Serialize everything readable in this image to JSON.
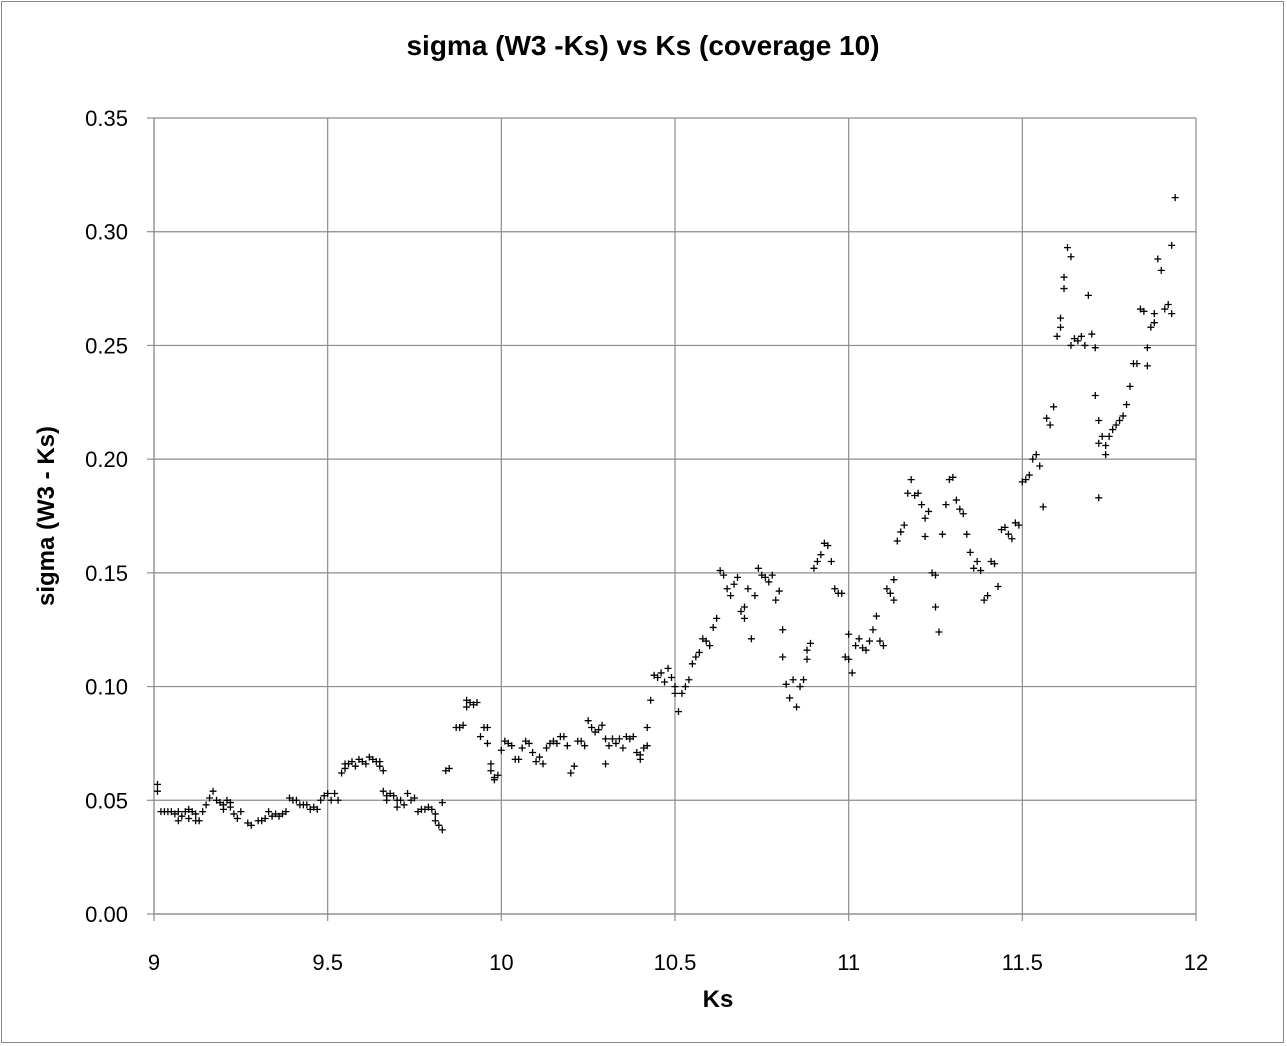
{
  "chart_data": {
    "type": "scatter",
    "title": "sigma (W3 -Ks) vs  Ks  (coverage 10)",
    "xlabel": "Ks",
    "ylabel": "sigma (W3 - Ks)",
    "xlim": [
      9,
      12
    ],
    "ylim": [
      0,
      0.35
    ],
    "x_ticks": [
      "9",
      "9.5",
      "10",
      "10.5",
      "11",
      "11.5",
      "12"
    ],
    "y_ticks": [
      "0.00",
      "0.05",
      "0.10",
      "0.15",
      "0.20",
      "0.25",
      "0.30",
      "0.35"
    ],
    "grid": true,
    "marker": "+",
    "marker_color": "#000000",
    "legend": "none",
    "points": [
      [
        9.01,
        0.057
      ],
      [
        9.01,
        0.054
      ],
      [
        9.02,
        0.045
      ],
      [
        9.03,
        0.045
      ],
      [
        9.04,
        0.045
      ],
      [
        9.05,
        0.045
      ],
      [
        9.06,
        0.044
      ],
      [
        9.07,
        0.045
      ],
      [
        9.07,
        0.041
      ],
      [
        9.08,
        0.043
      ],
      [
        9.09,
        0.045
      ],
      [
        9.1,
        0.046
      ],
      [
        9.1,
        0.042
      ],
      [
        9.11,
        0.045
      ],
      [
        9.12,
        0.044
      ],
      [
        9.12,
        0.041
      ],
      [
        9.13,
        0.041
      ],
      [
        9.14,
        0.045
      ],
      [
        9.15,
        0.048
      ],
      [
        9.16,
        0.051
      ],
      [
        9.17,
        0.054
      ],
      [
        9.18,
        0.05
      ],
      [
        9.19,
        0.049
      ],
      [
        9.2,
        0.048
      ],
      [
        9.2,
        0.046
      ],
      [
        9.21,
        0.05
      ],
      [
        9.22,
        0.049
      ],
      [
        9.22,
        0.047
      ],
      [
        9.23,
        0.044
      ],
      [
        9.24,
        0.042
      ],
      [
        9.25,
        0.045
      ],
      [
        9.27,
        0.04
      ],
      [
        9.28,
        0.039
      ],
      [
        9.3,
        0.041
      ],
      [
        9.31,
        0.041
      ],
      [
        9.32,
        0.042
      ],
      [
        9.33,
        0.045
      ],
      [
        9.34,
        0.043
      ],
      [
        9.35,
        0.044
      ],
      [
        9.36,
        0.043
      ],
      [
        9.37,
        0.044
      ],
      [
        9.38,
        0.045
      ],
      [
        9.39,
        0.051
      ],
      [
        9.4,
        0.05
      ],
      [
        9.41,
        0.05
      ],
      [
        9.42,
        0.048
      ],
      [
        9.43,
        0.048
      ],
      [
        9.44,
        0.048
      ],
      [
        9.45,
        0.046
      ],
      [
        9.46,
        0.047
      ],
      [
        9.47,
        0.046
      ],
      [
        9.48,
        0.05
      ],
      [
        9.49,
        0.052
      ],
      [
        9.5,
        0.053
      ],
      [
        9.51,
        0.05
      ],
      [
        9.52,
        0.053
      ],
      [
        9.53,
        0.05
      ],
      [
        9.54,
        0.062
      ],
      [
        9.55,
        0.064
      ],
      [
        9.55,
        0.066
      ],
      [
        9.56,
        0.066
      ],
      [
        9.57,
        0.067
      ],
      [
        9.58,
        0.065
      ],
      [
        9.59,
        0.068
      ],
      [
        9.6,
        0.067
      ],
      [
        9.61,
        0.066
      ],
      [
        9.62,
        0.069
      ],
      [
        9.63,
        0.068
      ],
      [
        9.64,
        0.067
      ],
      [
        9.65,
        0.067
      ],
      [
        9.65,
        0.065
      ],
      [
        9.66,
        0.063
      ],
      [
        9.66,
        0.054
      ],
      [
        9.67,
        0.052
      ],
      [
        9.67,
        0.05
      ],
      [
        9.68,
        0.053
      ],
      [
        9.69,
        0.052
      ],
      [
        9.7,
        0.05
      ],
      [
        9.7,
        0.047
      ],
      [
        9.71,
        0.05
      ],
      [
        9.72,
        0.048
      ],
      [
        9.73,
        0.053
      ],
      [
        9.74,
        0.05
      ],
      [
        9.75,
        0.051
      ],
      [
        9.76,
        0.045
      ],
      [
        9.77,
        0.046
      ],
      [
        9.78,
        0.046
      ],
      [
        9.79,
        0.047
      ],
      [
        9.8,
        0.046
      ],
      [
        9.81,
        0.044
      ],
      [
        9.81,
        0.041
      ],
      [
        9.82,
        0.039
      ],
      [
        9.83,
        0.037
      ],
      [
        9.83,
        0.049
      ],
      [
        9.84,
        0.063
      ],
      [
        9.85,
        0.064
      ],
      [
        9.87,
        0.082
      ],
      [
        9.88,
        0.082
      ],
      [
        9.89,
        0.083
      ],
      [
        9.9,
        0.091
      ],
      [
        9.9,
        0.094
      ],
      [
        9.91,
        0.093
      ],
      [
        9.92,
        0.092
      ],
      [
        9.93,
        0.093
      ],
      [
        9.94,
        0.078
      ],
      [
        9.95,
        0.082
      ],
      [
        9.96,
        0.082
      ],
      [
        9.96,
        0.075
      ],
      [
        9.97,
        0.066
      ],
      [
        9.97,
        0.063
      ],
      [
        9.98,
        0.059
      ],
      [
        9.98,
        0.06
      ],
      [
        9.99,
        0.061
      ],
      [
        10.0,
        0.072
      ],
      [
        10.01,
        0.076
      ],
      [
        10.02,
        0.075
      ],
      [
        10.03,
        0.074
      ],
      [
        10.04,
        0.068
      ],
      [
        10.05,
        0.068
      ],
      [
        10.06,
        0.073
      ],
      [
        10.07,
        0.076
      ],
      [
        10.08,
        0.075
      ],
      [
        10.09,
        0.071
      ],
      [
        10.1,
        0.067
      ],
      [
        10.11,
        0.069
      ],
      [
        10.12,
        0.066
      ],
      [
        10.13,
        0.073
      ],
      [
        10.14,
        0.075
      ],
      [
        10.15,
        0.076
      ],
      [
        10.16,
        0.075
      ],
      [
        10.17,
        0.078
      ],
      [
        10.18,
        0.078
      ],
      [
        10.19,
        0.074
      ],
      [
        10.2,
        0.062
      ],
      [
        10.21,
        0.065
      ],
      [
        10.22,
        0.076
      ],
      [
        10.23,
        0.076
      ],
      [
        10.24,
        0.074
      ],
      [
        10.25,
        0.085
      ],
      [
        10.26,
        0.082
      ],
      [
        10.27,
        0.08
      ],
      [
        10.28,
        0.081
      ],
      [
        10.29,
        0.083
      ],
      [
        10.3,
        0.077
      ],
      [
        10.3,
        0.066
      ],
      [
        10.31,
        0.074
      ],
      [
        10.32,
        0.077
      ],
      [
        10.33,
        0.075
      ],
      [
        10.34,
        0.077
      ],
      [
        10.35,
        0.073
      ],
      [
        10.36,
        0.078
      ],
      [
        10.37,
        0.077
      ],
      [
        10.38,
        0.078
      ],
      [
        10.39,
        0.071
      ],
      [
        10.4,
        0.07
      ],
      [
        10.4,
        0.068
      ],
      [
        10.41,
        0.073
      ],
      [
        10.42,
        0.074
      ],
      [
        10.42,
        0.082
      ],
      [
        10.43,
        0.094
      ],
      [
        10.44,
        0.105
      ],
      [
        10.45,
        0.104
      ],
      [
        10.46,
        0.106
      ],
      [
        10.47,
        0.102
      ],
      [
        10.48,
        0.108
      ],
      [
        10.49,
        0.104
      ],
      [
        10.5,
        0.097
      ],
      [
        10.5,
        0.1
      ],
      [
        10.51,
        0.089
      ],
      [
        10.52,
        0.097
      ],
      [
        10.53,
        0.1
      ],
      [
        10.54,
        0.103
      ],
      [
        10.55,
        0.11
      ],
      [
        10.56,
        0.113
      ],
      [
        10.57,
        0.115
      ],
      [
        10.58,
        0.121
      ],
      [
        10.59,
        0.12
      ],
      [
        10.6,
        0.118
      ],
      [
        10.61,
        0.126
      ],
      [
        10.62,
        0.13
      ],
      [
        10.63,
        0.151
      ],
      [
        10.64,
        0.149
      ],
      [
        10.65,
        0.143
      ],
      [
        10.66,
        0.14
      ],
      [
        10.67,
        0.145
      ],
      [
        10.68,
        0.148
      ],
      [
        10.69,
        0.133
      ],
      [
        10.7,
        0.135
      ],
      [
        10.7,
        0.13
      ],
      [
        10.71,
        0.143
      ],
      [
        10.72,
        0.121
      ],
      [
        10.73,
        0.14
      ],
      [
        10.74,
        0.152
      ],
      [
        10.75,
        0.149
      ],
      [
        10.76,
        0.148
      ],
      [
        10.77,
        0.146
      ],
      [
        10.78,
        0.149
      ],
      [
        10.79,
        0.138
      ],
      [
        10.8,
        0.142
      ],
      [
        10.81,
        0.125
      ],
      [
        10.81,
        0.113
      ],
      [
        10.82,
        0.101
      ],
      [
        10.83,
        0.095
      ],
      [
        10.84,
        0.103
      ],
      [
        10.85,
        0.091
      ],
      [
        10.86,
        0.1
      ],
      [
        10.87,
        0.103
      ],
      [
        10.88,
        0.112
      ],
      [
        10.88,
        0.116
      ],
      [
        10.89,
        0.119
      ],
      [
        10.9,
        0.152
      ],
      [
        10.91,
        0.155
      ],
      [
        10.92,
        0.158
      ],
      [
        10.93,
        0.163
      ],
      [
        10.94,
        0.162
      ],
      [
        10.95,
        0.155
      ],
      [
        10.96,
        0.143
      ],
      [
        10.97,
        0.141
      ],
      [
        10.98,
        0.141
      ],
      [
        10.99,
        0.113
      ],
      [
        11.0,
        0.112
      ],
      [
        11.0,
        0.123
      ],
      [
        11.01,
        0.106
      ],
      [
        11.02,
        0.118
      ],
      [
        11.03,
        0.121
      ],
      [
        11.04,
        0.117
      ],
      [
        11.05,
        0.116
      ],
      [
        11.06,
        0.12
      ],
      [
        11.07,
        0.125
      ],
      [
        11.08,
        0.131
      ],
      [
        11.09,
        0.12
      ],
      [
        11.1,
        0.118
      ],
      [
        11.11,
        0.143
      ],
      [
        11.12,
        0.141
      ],
      [
        11.13,
        0.147
      ],
      [
        11.13,
        0.138
      ],
      [
        11.14,
        0.164
      ],
      [
        11.15,
        0.168
      ],
      [
        11.16,
        0.171
      ],
      [
        11.17,
        0.185
      ],
      [
        11.18,
        0.191
      ],
      [
        11.19,
        0.184
      ],
      [
        11.2,
        0.185
      ],
      [
        11.21,
        0.18
      ],
      [
        11.22,
        0.174
      ],
      [
        11.22,
        0.166
      ],
      [
        11.23,
        0.177
      ],
      [
        11.24,
        0.15
      ],
      [
        11.25,
        0.149
      ],
      [
        11.25,
        0.135
      ],
      [
        11.26,
        0.124
      ],
      [
        11.27,
        0.167
      ],
      [
        11.28,
        0.18
      ],
      [
        11.29,
        0.191
      ],
      [
        11.3,
        0.192
      ],
      [
        11.31,
        0.182
      ],
      [
        11.32,
        0.178
      ],
      [
        11.33,
        0.176
      ],
      [
        11.34,
        0.167
      ],
      [
        11.35,
        0.159
      ],
      [
        11.36,
        0.152
      ],
      [
        11.37,
        0.155
      ],
      [
        11.38,
        0.151
      ],
      [
        11.39,
        0.138
      ],
      [
        11.4,
        0.14
      ],
      [
        11.41,
        0.155
      ],
      [
        11.42,
        0.154
      ],
      [
        11.43,
        0.144
      ],
      [
        11.44,
        0.169
      ],
      [
        11.45,
        0.17
      ],
      [
        11.46,
        0.167
      ],
      [
        11.47,
        0.165
      ],
      [
        11.48,
        0.172
      ],
      [
        11.49,
        0.171
      ],
      [
        11.5,
        0.19
      ],
      [
        11.51,
        0.191
      ],
      [
        11.52,
        0.193
      ],
      [
        11.53,
        0.2
      ],
      [
        11.54,
        0.202
      ],
      [
        11.55,
        0.197
      ],
      [
        11.56,
        0.179
      ],
      [
        11.57,
        0.218
      ],
      [
        11.58,
        0.215
      ],
      [
        11.59,
        0.223
      ],
      [
        11.6,
        0.254
      ],
      [
        11.61,
        0.262
      ],
      [
        11.61,
        0.258
      ],
      [
        11.62,
        0.275
      ],
      [
        11.62,
        0.28
      ],
      [
        11.63,
        0.293
      ],
      [
        11.64,
        0.289
      ],
      [
        11.64,
        0.25
      ],
      [
        11.65,
        0.253
      ],
      [
        11.66,
        0.252
      ],
      [
        11.67,
        0.254
      ],
      [
        11.68,
        0.25
      ],
      [
        11.69,
        0.272
      ],
      [
        11.7,
        0.255
      ],
      [
        11.71,
        0.228
      ],
      [
        11.71,
        0.249
      ],
      [
        11.72,
        0.217
      ],
      [
        11.72,
        0.207
      ],
      [
        11.72,
        0.183
      ],
      [
        11.73,
        0.21
      ],
      [
        11.74,
        0.206
      ],
      [
        11.74,
        0.202
      ],
      [
        11.75,
        0.21
      ],
      [
        11.76,
        0.213
      ],
      [
        11.77,
        0.215
      ],
      [
        11.78,
        0.217
      ],
      [
        11.79,
        0.219
      ],
      [
        11.8,
        0.224
      ],
      [
        11.81,
        0.232
      ],
      [
        11.82,
        0.242
      ],
      [
        11.83,
        0.242
      ],
      [
        11.84,
        0.266
      ],
      [
        11.85,
        0.265
      ],
      [
        11.86,
        0.249
      ],
      [
        11.86,
        0.241
      ],
      [
        11.87,
        0.258
      ],
      [
        11.88,
        0.26
      ],
      [
        11.88,
        0.264
      ],
      [
        11.89,
        0.288
      ],
      [
        11.9,
        0.283
      ],
      [
        11.91,
        0.266
      ],
      [
        11.92,
        0.268
      ],
      [
        11.93,
        0.264
      ],
      [
        11.93,
        0.294
      ],
      [
        11.94,
        0.315
      ]
    ]
  }
}
